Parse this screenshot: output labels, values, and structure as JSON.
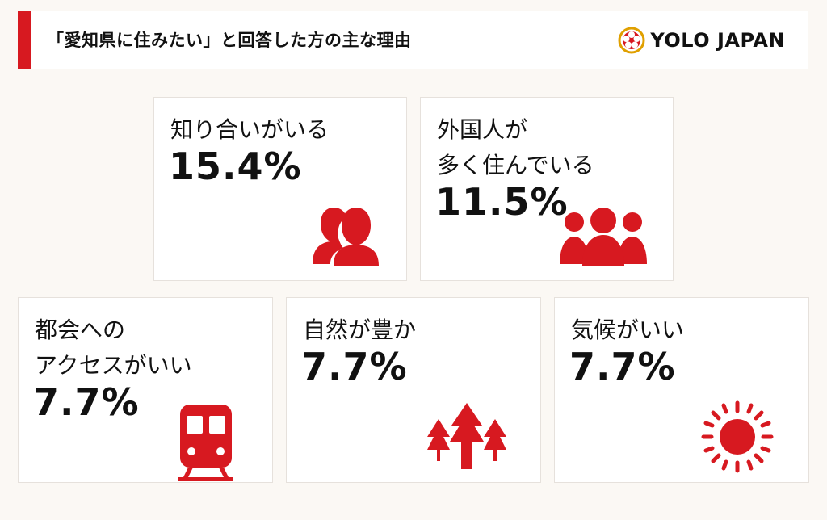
{
  "header": {
    "title": "「愛知県に住みたい」と回答した方の主な理由",
    "logo_text": "YOLO JAPAN"
  },
  "colors": {
    "accent": "#d71920",
    "background": "#fbf8f4",
    "card": "#ffffff"
  },
  "chart_data": {
    "type": "table",
    "title": "「愛知県に住みたい」と回答した方の主な理由",
    "unit": "%",
    "items": [
      {
        "label": "知り合いがいる",
        "value": "15.4%",
        "number": 15.4,
        "icon": "two-people-icon"
      },
      {
        "label": "外国人が\n多く住んでいる",
        "value": "11.5%",
        "number": 11.5,
        "icon": "three-people-icon"
      },
      {
        "label": "都会への\nアクセスがいい",
        "value": "7.7%",
        "number": 7.7,
        "icon": "train-icon"
      },
      {
        "label": "自然が豊か",
        "value": "7.7%",
        "number": 7.7,
        "icon": "trees-icon"
      },
      {
        "label": "気候がいい",
        "value": "7.7%",
        "number": 7.7,
        "icon": "sun-icon"
      }
    ]
  }
}
